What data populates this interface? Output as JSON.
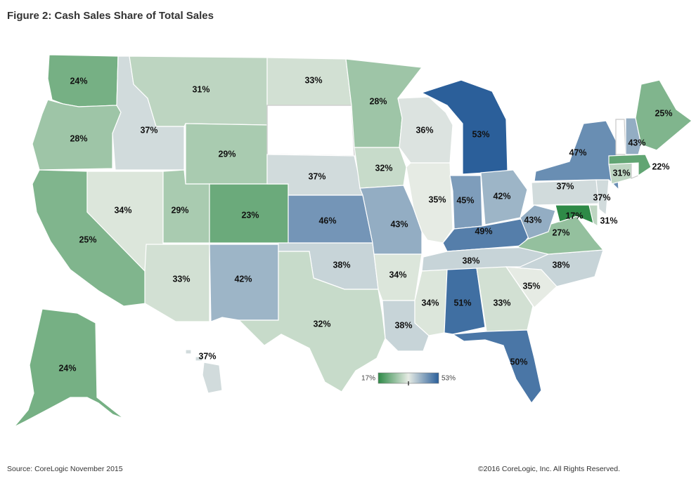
{
  "title": "Figure 2: Cash Sales Share of Total Sales",
  "source": "Source: CoreLogic November 2015",
  "copyright": "©2016 CoreLogic, Inc. All Rights Reserved.",
  "legend": {
    "min_label": "17%",
    "max_label": "53%",
    "min": 17,
    "max": 53
  },
  "colors": {
    "low_green": "#2e8a47",
    "mid_light": "#e6ebe4",
    "high_blue": "#2b5f9a",
    "no_data": "#ffffff",
    "border": "#ffffff"
  },
  "states": [
    {
      "id": "WA",
      "value": 24,
      "label": "24%"
    },
    {
      "id": "OR",
      "value": 28,
      "label": "28%"
    },
    {
      "id": "CA",
      "value": 25,
      "label": "25%"
    },
    {
      "id": "ID",
      "value": 37,
      "label": "37%"
    },
    {
      "id": "NV",
      "value": 34,
      "label": "34%"
    },
    {
      "id": "MT",
      "value": 31,
      "label": "31%"
    },
    {
      "id": "WY",
      "value": 29,
      "label": "29%"
    },
    {
      "id": "UT",
      "value": 29,
      "label": "29%"
    },
    {
      "id": "AZ",
      "value": 33,
      "label": "33%"
    },
    {
      "id": "CO",
      "value": 23,
      "label": "23%"
    },
    {
      "id": "NM",
      "value": 42,
      "label": "42%"
    },
    {
      "id": "ND",
      "value": 33,
      "label": "33%"
    },
    {
      "id": "SD",
      "value": null,
      "label": ""
    },
    {
      "id": "NE",
      "value": 37,
      "label": "37%"
    },
    {
      "id": "KS",
      "value": 46,
      "label": "46%"
    },
    {
      "id": "OK",
      "value": 38,
      "label": "38%"
    },
    {
      "id": "TX",
      "value": 32,
      "label": "32%"
    },
    {
      "id": "MN",
      "value": 28,
      "label": "28%"
    },
    {
      "id": "IA",
      "value": 32,
      "label": "32%"
    },
    {
      "id": "MO",
      "value": 43,
      "label": "43%"
    },
    {
      "id": "AR",
      "value": 34,
      "label": "34%"
    },
    {
      "id": "LA",
      "value": 38,
      "label": "38%"
    },
    {
      "id": "WI",
      "value": 36,
      "label": "36%"
    },
    {
      "id": "IL",
      "value": 35,
      "label": "35%"
    },
    {
      "id": "MI",
      "value": 53,
      "label": "53%"
    },
    {
      "id": "IN",
      "value": 45,
      "label": "45%"
    },
    {
      "id": "OH",
      "value": 42,
      "label": "42%"
    },
    {
      "id": "KY",
      "value": 49,
      "label": "49%"
    },
    {
      "id": "TN",
      "value": 38,
      "label": "38%"
    },
    {
      "id": "MS",
      "value": 34,
      "label": "34%"
    },
    {
      "id": "AL",
      "value": 51,
      "label": "51%"
    },
    {
      "id": "GA",
      "value": 33,
      "label": "33%"
    },
    {
      "id": "FL",
      "value": 50,
      "label": "50%"
    },
    {
      "id": "SC",
      "value": 35,
      "label": "35%"
    },
    {
      "id": "NC",
      "value": 38,
      "label": "38%"
    },
    {
      "id": "VA",
      "value": 27,
      "label": "27%"
    },
    {
      "id": "WV",
      "value": 43,
      "label": "43%"
    },
    {
      "id": "MD",
      "value": 17,
      "label": "17%"
    },
    {
      "id": "DE",
      "value": 31,
      "label": "31%"
    },
    {
      "id": "PA",
      "value": 37,
      "label": "37%"
    },
    {
      "id": "NJ",
      "value": 37,
      "label": "37%"
    },
    {
      "id": "NY",
      "value": 47,
      "label": "47%"
    },
    {
      "id": "CT",
      "value": 31,
      "label": "31%"
    },
    {
      "id": "RI",
      "value": null,
      "label": ""
    },
    {
      "id": "MA",
      "value": 22,
      "label": "22%"
    },
    {
      "id": "VT",
      "value": null,
      "label": ""
    },
    {
      "id": "NH",
      "value": 43,
      "label": "43%"
    },
    {
      "id": "ME",
      "value": 25,
      "label": "25%"
    },
    {
      "id": "AK",
      "value": 24,
      "label": "24%"
    },
    {
      "id": "HI",
      "value": 37,
      "label": "37%"
    }
  ]
}
